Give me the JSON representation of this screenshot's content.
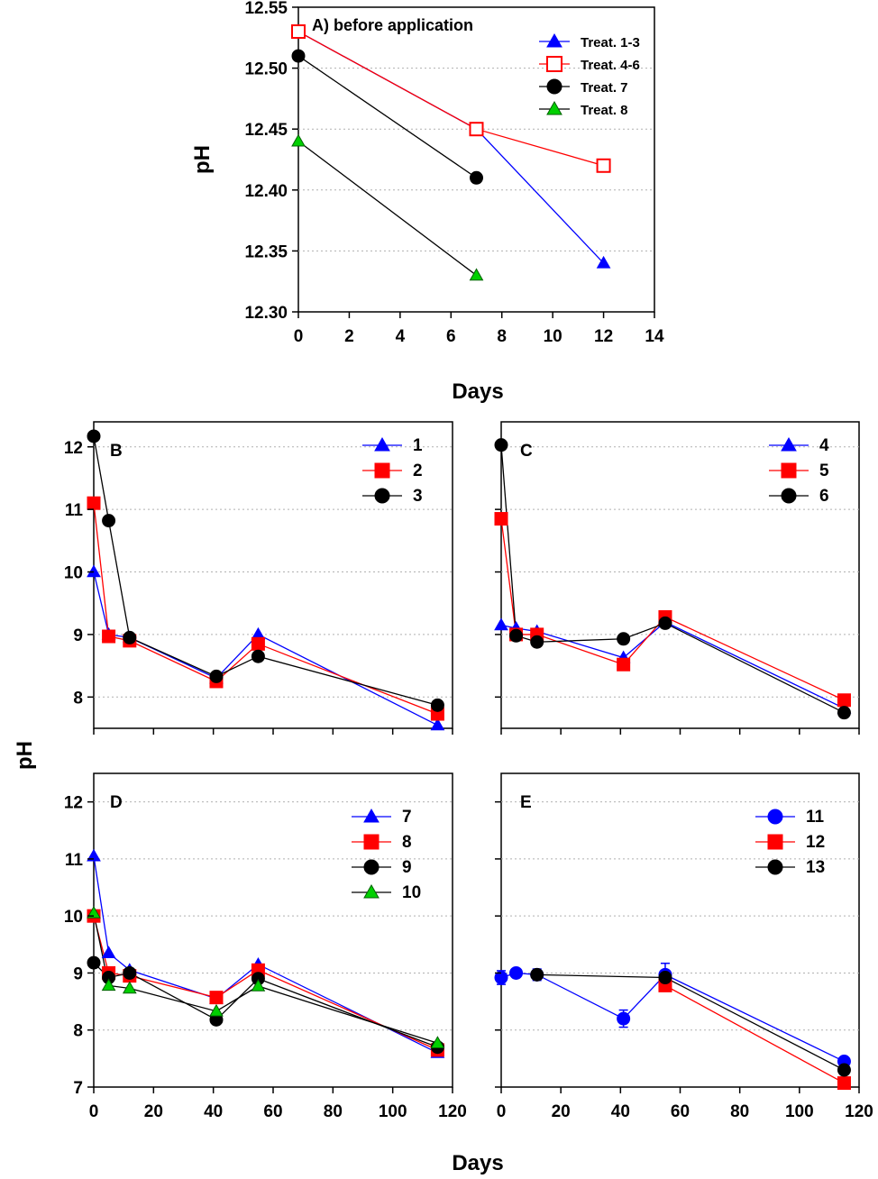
{
  "chart_data": [
    {
      "panel": "A",
      "type": "line",
      "title": "A) before application",
      "xlabel": "Days",
      "ylabel": "pH",
      "xlim": [
        0,
        14
      ],
      "ylim": [
        12.3,
        12.55
      ],
      "x_ticks": [
        "0",
        "2",
        "4",
        "6",
        "8",
        "10",
        "12",
        "14"
      ],
      "y_ticks": [
        "12.30",
        "12.35",
        "12.40",
        "12.45",
        "12.50",
        "12.55"
      ],
      "grid": "horizontal dotted",
      "legend_position": "top-right",
      "series": [
        {
          "name": "Treat. 1-3",
          "marker": "triangle",
          "fill": "#0000ff",
          "line": "#0000ff",
          "x": [
            0,
            7,
            12
          ],
          "y": [
            12.53,
            12.45,
            12.34
          ]
        },
        {
          "name": "Treat. 4-6",
          "marker": "square-open",
          "fill": "#ffffff",
          "line": "#ff0000",
          "stroke": "#ff0000",
          "x": [
            0,
            7,
            12
          ],
          "y": [
            12.53,
            12.45,
            12.42
          ]
        },
        {
          "name": "Treat. 7",
          "marker": "circle",
          "fill": "#000000",
          "line": "#000000",
          "x": [
            0,
            7
          ],
          "y": [
            12.51,
            12.41
          ]
        },
        {
          "name": "Treat. 8",
          "marker": "triangle",
          "fill": "#00d000",
          "line": "#000000",
          "x": [
            0,
            7
          ],
          "y": [
            12.44,
            12.33
          ]
        }
      ]
    },
    {
      "panel": "B",
      "type": "line",
      "title": "B",
      "xlim": [
        0,
        120
      ],
      "ylim": [
        7.5,
        12.4
      ],
      "y_ticks": [
        "8",
        "9",
        "10",
        "11",
        "12"
      ],
      "grid": "horizontal dotted",
      "legend_position": "top-right",
      "series": [
        {
          "name": "1",
          "marker": "triangle",
          "fill": "#0000ff",
          "line": "#0000ff",
          "x": [
            0,
            5,
            12,
            41,
            55,
            115
          ],
          "y": [
            10.0,
            9.0,
            8.95,
            8.3,
            9.0,
            7.55
          ]
        },
        {
          "name": "2",
          "marker": "square",
          "fill": "#ff0000",
          "line": "#ff0000",
          "x": [
            0,
            5,
            12,
            41,
            55,
            115
          ],
          "y": [
            11.1,
            8.97,
            8.9,
            8.25,
            8.85,
            7.73
          ]
        },
        {
          "name": "3",
          "marker": "circle",
          "fill": "#000000",
          "line": "#000000",
          "x": [
            0,
            5,
            12,
            41,
            55,
            115
          ],
          "y": [
            12.17,
            10.82,
            8.95,
            8.33,
            8.65,
            7.87
          ]
        }
      ]
    },
    {
      "panel": "C",
      "type": "line",
      "title": "C",
      "xlim": [
        0,
        120
      ],
      "ylim": [
        7.5,
        12.4
      ],
      "grid": "horizontal dotted",
      "legend_position": "top-right",
      "series": [
        {
          "name": "4",
          "marker": "triangle",
          "fill": "#0000ff",
          "line": "#0000ff",
          "x": [
            0,
            5,
            12,
            41,
            55,
            115
          ],
          "y": [
            9.15,
            9.1,
            9.05,
            8.63,
            9.2,
            7.82
          ]
        },
        {
          "name": "5",
          "marker": "square",
          "fill": "#ff0000",
          "line": "#ff0000",
          "x": [
            0,
            5,
            12,
            41,
            55,
            115
          ],
          "y": [
            10.85,
            9.0,
            9.0,
            8.52,
            9.28,
            7.95
          ]
        },
        {
          "name": "6",
          "marker": "circle",
          "fill": "#000000",
          "line": "#000000",
          "x": [
            0,
            5,
            12,
            41,
            55,
            115
          ],
          "y": [
            12.03,
            8.98,
            8.88,
            8.93,
            9.18,
            7.75
          ]
        }
      ]
    },
    {
      "panel": "D",
      "type": "line",
      "title": "D",
      "xlabel": "Days",
      "xlim": [
        0,
        120
      ],
      "ylim": [
        7.0,
        12.5
      ],
      "x_ticks": [
        "0",
        "20",
        "40",
        "60",
        "80",
        "100",
        "120"
      ],
      "y_ticks": [
        "7",
        "8",
        "9",
        "10",
        "11",
        "12"
      ],
      "grid": "horizontal dotted",
      "legend_position": "top-right",
      "series": [
        {
          "name": "7",
          "marker": "triangle",
          "fill": "#0000ff",
          "line": "#0000ff",
          "x": [
            0,
            5,
            12,
            41,
            55,
            115
          ],
          "y": [
            11.05,
            9.35,
            9.05,
            8.55,
            9.15,
            7.6
          ]
        },
        {
          "name": "8",
          "marker": "square",
          "fill": "#ff0000",
          "line": "#ff0000",
          "x": [
            0,
            5,
            12,
            41,
            55,
            115
          ],
          "y": [
            10.0,
            9.0,
            8.95,
            8.57,
            9.05,
            7.65
          ]
        },
        {
          "name": "9",
          "marker": "circle",
          "fill": "#000000",
          "line": "#000000",
          "x": [
            0,
            5,
            12,
            41,
            55,
            115
          ],
          "y": [
            9.18,
            8.92,
            9.0,
            8.18,
            8.9,
            7.7
          ]
        },
        {
          "name": "10",
          "marker": "triangle",
          "fill": "#00d000",
          "line": "#000000",
          "x": [
            0,
            5,
            12,
            41,
            55,
            115
          ],
          "y": [
            10.05,
            8.78,
            8.73,
            8.33,
            8.77,
            7.77
          ]
        }
      ]
    },
    {
      "panel": "E",
      "type": "line",
      "title": "E",
      "xlabel": "Days",
      "xlim": [
        0,
        120
      ],
      "ylim": [
        7.0,
        12.5
      ],
      "x_ticks": [
        "0",
        "20",
        "40",
        "60",
        "80",
        "100",
        "120"
      ],
      "grid": "horizontal dotted",
      "legend_position": "top-right",
      "series": [
        {
          "name": "11",
          "marker": "circle",
          "fill": "#0000ff",
          "line": "#0000ff",
          "x": [
            0,
            5,
            12,
            41,
            55,
            115
          ],
          "y": [
            8.92,
            9.0,
            8.97,
            8.2,
            8.97,
            7.45
          ],
          "error": [
            0.12,
            0.05,
            0.1,
            0.15,
            0.2,
            0.05
          ]
        },
        {
          "name": "12",
          "marker": "square",
          "fill": "#ff0000",
          "line": "#ff0000",
          "x": [
            55,
            115
          ],
          "y": [
            8.78,
            7.07
          ]
        },
        {
          "name": "13",
          "marker": "circle",
          "fill": "#000000",
          "line": "#000000",
          "x": [
            12,
            55,
            115
          ],
          "y": [
            8.97,
            8.92,
            7.3
          ]
        }
      ]
    }
  ],
  "shared_labels": {
    "ylabel_bottom": "pH",
    "xlabel_bottom": "Days"
  }
}
